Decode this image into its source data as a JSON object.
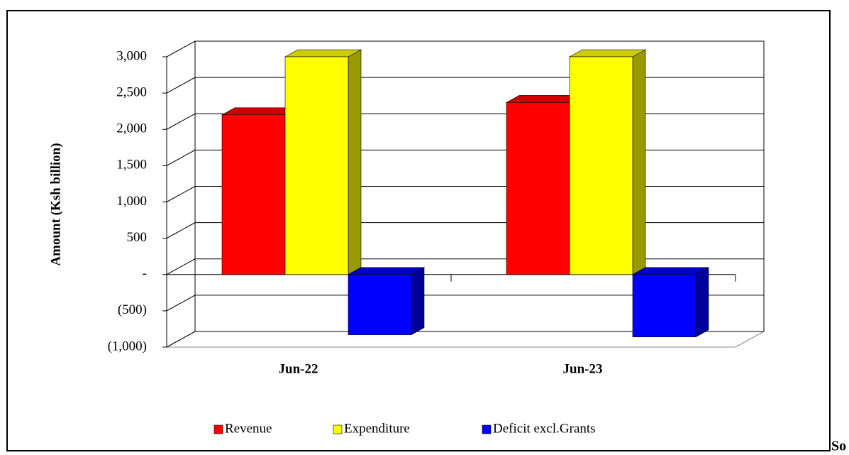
{
  "chart_data": {
    "type": "bar3d",
    "y_label": "Amount  (Ksh billion)",
    "categories": [
      "Jun-22",
      "Jun-23"
    ],
    "series": [
      {
        "name": "Revenue",
        "color": "#ff0000",
        "values": [
          2200,
          2370
        ]
      },
      {
        "name": "Expenditure",
        "color": "#ffff00",
        "values": [
          3000,
          3000
        ]
      },
      {
        "name": "Deficit excl.Grants",
        "color": "#0000ff",
        "values": [
          -830,
          -860
        ]
      }
    ],
    "ylim": [
      -1000,
      3000
    ],
    "yticks": [
      {
        "value": -1000,
        "label": "(1,000)"
      },
      {
        "value": -500,
        "label": "(500)"
      },
      {
        "value": 0,
        "label": "-"
      },
      {
        "value": 500,
        "label": "500"
      },
      {
        "value": 1000,
        "label": "1,000"
      },
      {
        "value": 1500,
        "label": "1,500"
      },
      {
        "value": 2000,
        "label": "2,000"
      },
      {
        "value": 2500,
        "label": "2,500"
      },
      {
        "value": 3000,
        "label": "3,000"
      }
    ],
    "grid": true,
    "legend": "bottom",
    "trailing_text": "So"
  },
  "outside": {
    "trailing_text": "So"
  }
}
